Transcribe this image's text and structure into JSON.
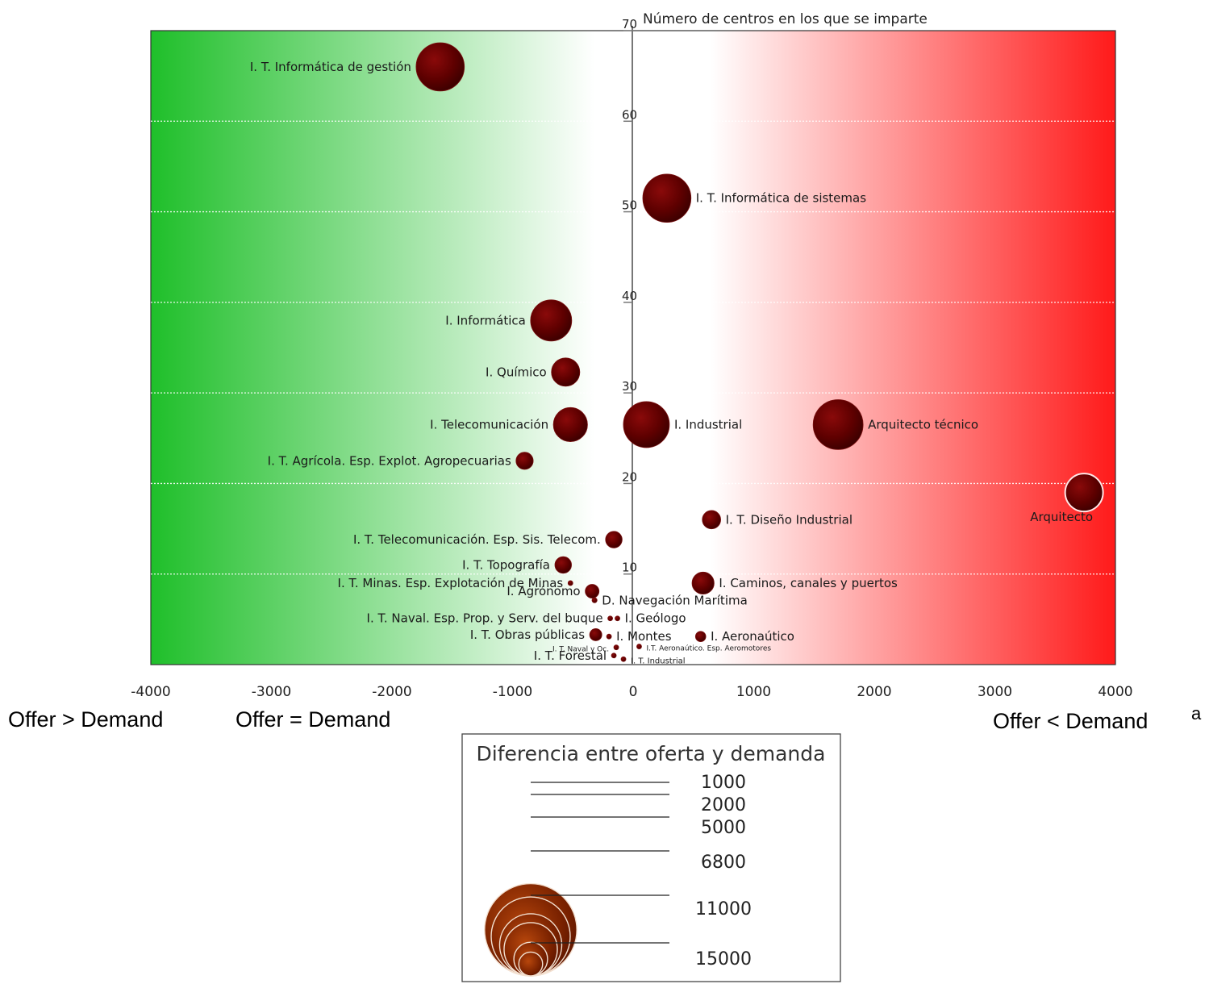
{
  "chart_data": {
    "type": "bubble",
    "ylabel": "Número de centros en los que se imparte",
    "xlim": [
      -4000,
      4000
    ],
    "ylim": [
      0,
      70
    ],
    "xticks": [
      -4000,
      -3000,
      -2000,
      -1000,
      0,
      1000,
      2000,
      3000,
      4000
    ],
    "yticks": [
      10,
      20,
      30,
      40,
      50,
      60,
      70
    ],
    "grid": true,
    "background": {
      "left_color": "#1fbf2a",
      "middle_color": "#ffffff",
      "right_color": "#ff1a1a"
    },
    "bubble_color": "#6b0000",
    "points": [
      {
        "label": "I. T. Informática de gestión",
        "x": -1600,
        "y": 66,
        "size": 11000
      },
      {
        "label": "I. T. Informática de sistemas",
        "x": 280,
        "y": 51.5,
        "size": 11000
      },
      {
        "label": "I. Informática",
        "x": -680,
        "y": 38,
        "size": 8000
      },
      {
        "label": "I. Químico",
        "x": -560,
        "y": 32.3,
        "size": 3800
      },
      {
        "label": "I. Telecomunicación",
        "x": -520,
        "y": 26.5,
        "size": 5500
      },
      {
        "label": "I. Industrial",
        "x": 110,
        "y": 26.5,
        "size": 10000
      },
      {
        "label": "Arquitecto técnico",
        "x": 1700,
        "y": 26.5,
        "size": 11800
      },
      {
        "label": "I. T. Agrícola. Esp. Explot. Agropecuarias",
        "x": -900,
        "y": 22.5,
        "size": 1400
      },
      {
        "label": "Arquitecto",
        "x": 3740,
        "y": 19,
        "size": 6800
      },
      {
        "label": "I. T. Diseño Industrial",
        "x": 650,
        "y": 16,
        "size": 1600
      },
      {
        "label": "I. T. Telecomunicación. Esp. Sis. Telecom.",
        "x": -160,
        "y": 13.8,
        "size": 1300
      },
      {
        "label": "I. T. Topografía",
        "x": -580,
        "y": 11,
        "size": 1300
      },
      {
        "label": "I. Caminos, canales y puertos",
        "x": 580,
        "y": 9,
        "size": 2300
      },
      {
        "label": "I. T. Minas. Esp. Explotación de Minas",
        "x": -520,
        "y": 9,
        "size": 60
      },
      {
        "label": "I. Agrónomo",
        "x": -340,
        "y": 8.1,
        "size": 900
      },
      {
        "label": "D. Navegación Marítima",
        "x": -320,
        "y": 7.1,
        "size": 120
      },
      {
        "label": "I. T. Naval. Esp. Prop. y Serv. del buque",
        "x": -190,
        "y": 5.1,
        "size": 60
      },
      {
        "label": "I. Geólogo",
        "x": -130,
        "y": 5.1,
        "size": 60
      },
      {
        "label": "I. T. Obras públicas",
        "x": -310,
        "y": 3.3,
        "size": 700
      },
      {
        "label": "I. Montes",
        "x": -200,
        "y": 3.1,
        "size": 60
      },
      {
        "label": "I. Aeronaútico",
        "x": 560,
        "y": 3.1,
        "size": 500
      },
      {
        "label": "I. T. Naval y Oc.",
        "x": -140,
        "y": 1.9,
        "size": 60
      },
      {
        "label": "I.T. Aeronaútico. Esp. Aeromotores",
        "x": 50,
        "y": 2.0,
        "size": 60
      },
      {
        "label": "I. T. Forestal",
        "x": -160,
        "y": 1.0,
        "size": 60
      },
      {
        "label": "I. T. Industrial",
        "x": -80,
        "y": 0.6,
        "size": 60
      }
    ]
  },
  "annotations": {
    "left": "Offer > Demand",
    "middle": "Offer = Demand",
    "right": "Offer < Demand",
    "corner_mark": "a"
  },
  "legend": {
    "title": "Diferencia entre oferta y demanda",
    "entries": [
      {
        "label": "1000",
        "value": 1000
      },
      {
        "label": "2000",
        "value": 2000
      },
      {
        "label": "5000",
        "value": 5000
      },
      {
        "label": "6800",
        "value": 6800
      },
      {
        "label": "11000",
        "value": 11000
      },
      {
        "label": "15000",
        "value": 15000
      }
    ]
  }
}
